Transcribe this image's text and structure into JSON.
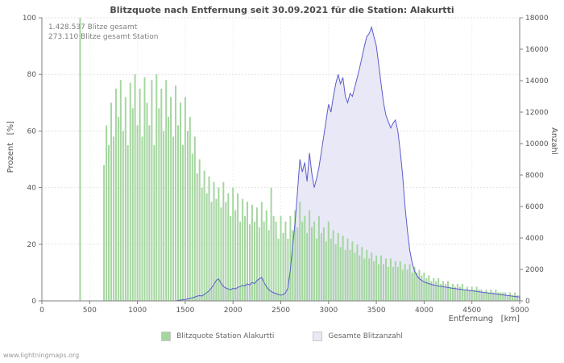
{
  "page": {
    "footer": "www.lightningmaps.org"
  },
  "annotations": {
    "total": "1.428.537 Blitze gesamt",
    "station": "273.110 Blitze gesamt Station"
  },
  "legend": [
    {
      "label": "Blitzquote Station Alakurtti",
      "color": "#a5d6a0"
    },
    {
      "label": "Gesamte Blitzanzahl",
      "color": "#e8e8f6"
    }
  ],
  "chart_data": {
    "type": "bar",
    "title": "Blitzquote nach Entfernung seit 30.09.2021 für die Station: Alakurtti",
    "x_label": "Entfernung   [km]",
    "y_left_label": "Prozent   [%]",
    "y_right_label": "Anzahl",
    "x_range": [
      0,
      5000
    ],
    "y_left_range": [
      0,
      100
    ],
    "y_right_range": [
      0,
      18000
    ],
    "x_ticks": [
      0,
      500,
      1000,
      1500,
      2000,
      2500,
      3000,
      3500,
      4000,
      4500,
      5000
    ],
    "y_left_ticks": [
      0,
      20,
      40,
      60,
      80,
      100
    ],
    "y_right_ticks": [
      0,
      2000,
      4000,
      6000,
      8000,
      10000,
      12000,
      14000,
      16000,
      18000
    ],
    "grid": true,
    "legend_position": "bottom",
    "x_start": 0,
    "x_step": 25,
    "series": [
      {
        "name": "Blitzquote Station Alakurtti",
        "type": "bar",
        "axis": "left",
        "color": "#a5d6a0",
        "values": [
          0,
          0,
          0,
          0,
          0,
          0,
          0,
          0,
          0,
          0,
          0,
          0,
          0,
          0,
          0,
          0,
          100,
          0,
          0,
          0,
          0,
          0,
          0,
          0,
          0,
          0,
          48,
          62,
          55,
          70,
          58,
          75,
          65,
          78,
          60,
          72,
          55,
          77,
          68,
          80,
          62,
          75,
          58,
          79,
          70,
          62,
          78,
          55,
          80,
          68,
          75,
          60,
          78,
          65,
          72,
          58,
          76,
          62,
          70,
          55,
          72,
          60,
          65,
          52,
          58,
          45,
          50,
          40,
          46,
          38,
          44,
          35,
          42,
          36,
          40,
          33,
          42,
          35,
          38,
          30,
          40,
          32,
          38,
          28,
          36,
          30,
          35,
          27,
          34,
          28,
          33,
          26,
          35,
          28,
          32,
          25,
          40,
          30,
          28,
          22,
          30,
          24,
          28,
          22,
          30,
          25,
          32,
          26,
          35,
          28,
          30,
          24,
          32,
          26,
          28,
          22,
          30,
          24,
          26,
          21,
          28,
          22,
          25,
          20,
          24,
          19,
          23,
          18,
          22,
          18,
          21,
          17,
          20,
          16,
          19,
          15,
          18,
          15,
          17,
          14,
          16,
          13,
          16,
          13,
          15,
          12,
          15,
          12,
          14,
          12,
          14,
          11,
          13,
          11,
          13,
          10,
          12,
          10,
          11,
          9,
          10,
          8,
          9,
          7,
          8,
          7,
          8,
          6,
          7,
          6,
          7,
          5,
          6,
          5,
          6,
          5,
          6,
          4,
          5,
          4,
          5,
          4,
          5,
          4,
          4,
          3,
          4,
          3,
          4,
          3,
          4,
          3,
          3,
          3,
          3,
          2,
          3,
          2,
          3,
          2,
          2
        ]
      },
      {
        "name": "Gesamte Blitzanzahl",
        "type": "area",
        "axis": "right",
        "fill": "#e8e8f6",
        "stroke": "#5c5ccd",
        "values": [
          0,
          0,
          0,
          0,
          0,
          0,
          0,
          0,
          0,
          0,
          0,
          0,
          0,
          0,
          0,
          0,
          0,
          0,
          0,
          0,
          0,
          0,
          0,
          0,
          0,
          0,
          0,
          0,
          0,
          0,
          0,
          0,
          0,
          0,
          0,
          0,
          0,
          0,
          0,
          0,
          0,
          0,
          0,
          0,
          0,
          0,
          0,
          0,
          0,
          0,
          0,
          0,
          0,
          0,
          0,
          0,
          0,
          30,
          50,
          70,
          90,
          120,
          160,
          200,
          250,
          300,
          340,
          310,
          420,
          520,
          640,
          820,
          1050,
          1300,
          1400,
          1120,
          920,
          820,
          760,
          710,
          800,
          760,
          860,
          910,
          1000,
          950,
          1080,
          1010,
          1180,
          1100,
          1290,
          1400,
          1500,
          1180,
          900,
          710,
          600,
          520,
          460,
          410,
          360,
          410,
          520,
          820,
          2000,
          3500,
          5000,
          7000,
          9000,
          8200,
          8800,
          7600,
          9400,
          8100,
          7200,
          7800,
          8500,
          9500,
          10500,
          11500,
          12500,
          12000,
          13000,
          13800,
          14400,
          13800,
          14200,
          13000,
          12600,
          13200,
          13000,
          13600,
          14200,
          14800,
          15500,
          16200,
          16800,
          17000,
          17400,
          16800,
          16200,
          15000,
          13800,
          12600,
          11800,
          11400,
          11000,
          11300,
          11500,
          10800,
          9500,
          8000,
          6000,
          4500,
          3200,
          2400,
          1900,
          1600,
          1400,
          1300,
          1200,
          1150,
          1100,
          1050,
          1000,
          980,
          950,
          920,
          900,
          870,
          850,
          820,
          800,
          780,
          760,
          740,
          720,
          700,
          680,
          660,
          640,
          620,
          600,
          580,
          560,
          540,
          520,
          500,
          480,
          460,
          440,
          420,
          400,
          380,
          360,
          340,
          320,
          300,
          280,
          260,
          240
        ]
      }
    ]
  }
}
